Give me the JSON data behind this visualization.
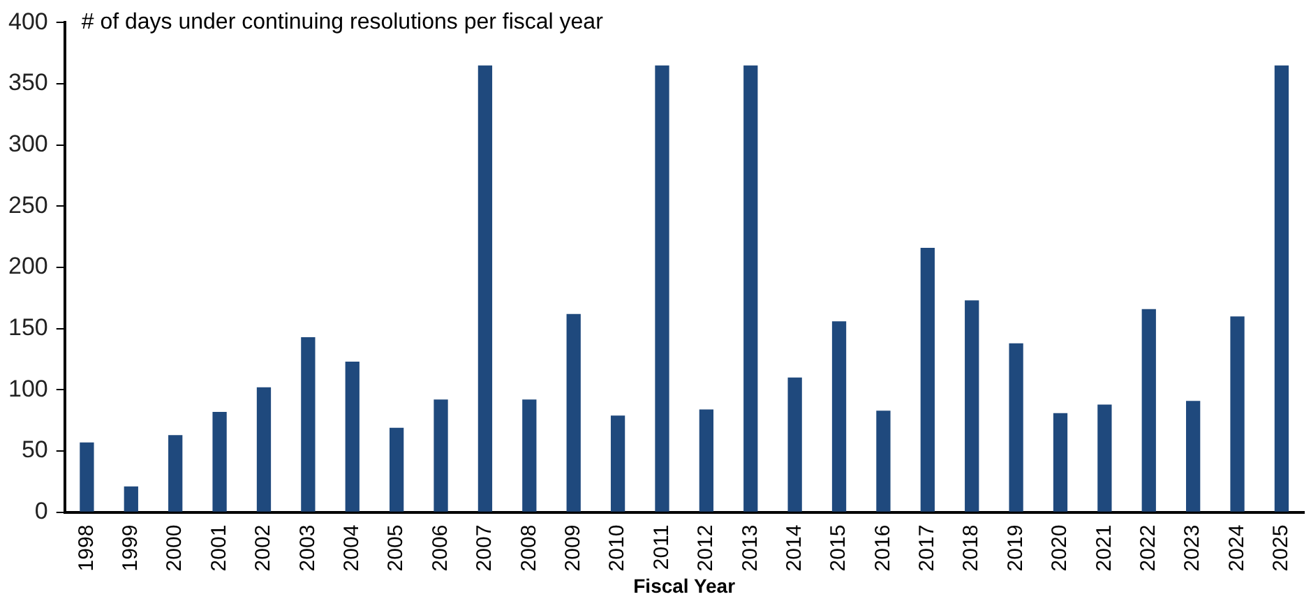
{
  "chart_data": {
    "type": "bar",
    "ylabel": "# of days under continuing resolutions per fiscal year",
    "xlabel": "Fiscal Year",
    "categories": [
      "1998",
      "1999",
      "2000",
      "2001",
      "2002",
      "2003",
      "2004",
      "2005",
      "2006",
      "2007",
      "2008",
      "2009",
      "2010",
      "2011",
      "2012",
      "2013",
      "2014",
      "2015",
      "2016",
      "2017",
      "2018",
      "2019",
      "2020",
      "2021",
      "2022",
      "2023",
      "2024",
      "2025"
    ],
    "values": [
      57,
      21,
      63,
      82,
      102,
      143,
      123,
      69,
      92,
      365,
      92,
      162,
      79,
      365,
      84,
      365,
      110,
      156,
      83,
      216,
      173,
      138,
      81,
      88,
      166,
      91,
      160,
      365
    ],
    "color": "#1f497d",
    "ylim": [
      0,
      400
    ],
    "yticks": [
      0,
      50,
      100,
      150,
      200,
      250,
      300,
      350,
      400
    ],
    "grid": false,
    "legend": false
  }
}
